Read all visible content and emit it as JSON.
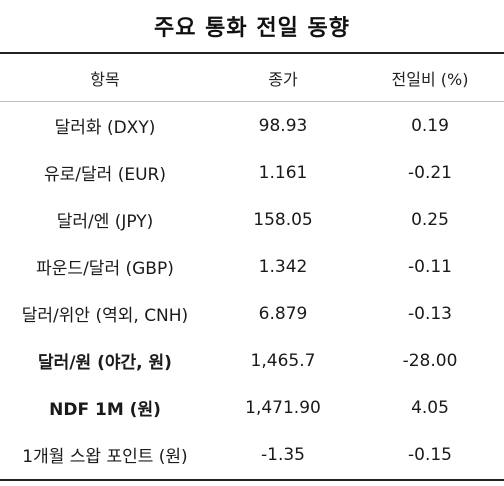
{
  "title": "주요 통화 전일 동향",
  "columns": [
    "항목",
    "종가",
    "전일비 (%)"
  ],
  "rows": [
    {
      "item": "달러화 (DXY)",
      "close": "98.93",
      "change": "0.19",
      "bold": false
    },
    {
      "item": "유로/달러 (EUR)",
      "close": "1.161",
      "change": "-0.21",
      "bold": false
    },
    {
      "item": "달러/엔 (JPY)",
      "close": "158.05",
      "change": "0.25",
      "bold": false
    },
    {
      "item": "파운드/달러 (GBP)",
      "close": "1.342",
      "change": "-0.11",
      "bold": false
    },
    {
      "item": "달러/위안 (역외, CNH)",
      "close": "6.879",
      "change": "-0.13",
      "bold": false
    },
    {
      "item": "달러/원 (야간, 원)",
      "close": "1,465.7",
      "change": "-28.00",
      "bold": true
    },
    {
      "item": "NDF 1M (원)",
      "close": "1,471.90",
      "change": "4.05",
      "bold": true
    },
    {
      "item": "1개월 스왑 포인트 (원)",
      "close": "-1.35",
      "change": "-0.15",
      "bold": false
    }
  ]
}
